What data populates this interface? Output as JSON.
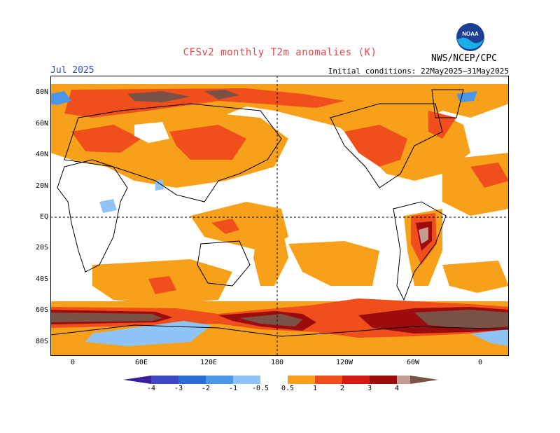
{
  "title": "CFSv2 monthly T2m anomalies (K)",
  "month": "Jul 2025",
  "initial_conditions": "Initial conditions: 22May2025–31May2025",
  "agency": "NWS/NCEP/CPC",
  "logo_text": "NOAA",
  "lat_labels": [
    "80N",
    "60N",
    "40N",
    "20N",
    "EQ",
    "20S",
    "40S",
    "60S",
    "80S"
  ],
  "lon_labels": [
    "0",
    "60E",
    "120E",
    "180",
    "120W",
    "60W",
    "0"
  ],
  "colorbar": {
    "labels": [
      "-4",
      "-3",
      "-2",
      "-1",
      "-0.5",
      "0.5",
      "1",
      "2",
      "3",
      "4"
    ],
    "colors": {
      "lt_-4": "#3a1e9c",
      "-4_-3": "#3d47c4",
      "-3_-2": "#2a6cd6",
      "-2_-1": "#4a97ea",
      "-1_-0.5": "#8ec4f6",
      "-0.5_0.5": "#ffffff",
      "0.5_1": "#f7a01a",
      "1_2": "#f04e1a",
      "2_3": "#d41a10",
      "3_4": "#9c0c0c",
      "4_5": "#c49c92",
      "gt_5": "#7a5245"
    }
  }
}
